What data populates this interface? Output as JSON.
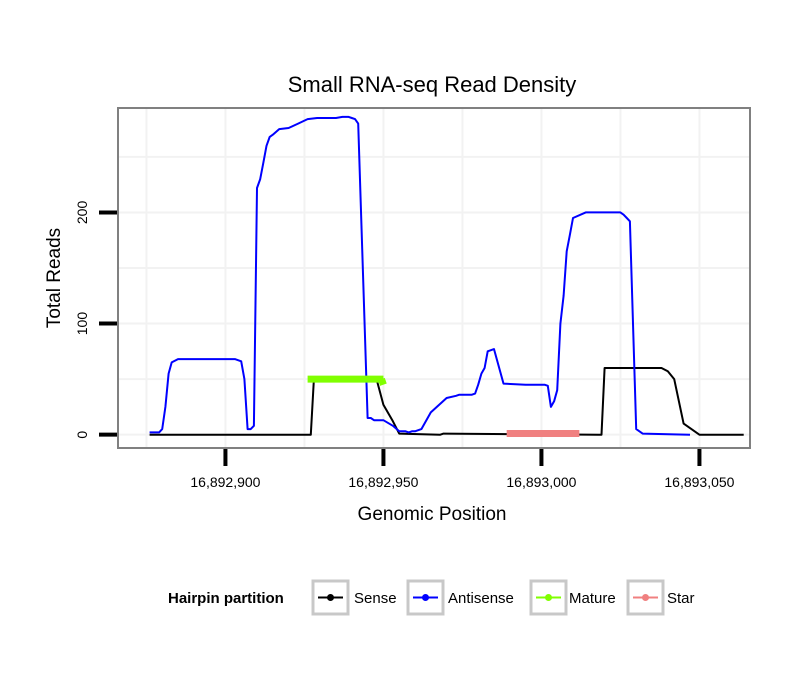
{
  "chart_data": {
    "type": "line",
    "title": "Small RNA-seq Read Density",
    "xlabel": "Genomic Position",
    "ylabel": "Total Reads",
    "xlim": [
      16892866,
      16893066
    ],
    "ylim": [
      -12,
      294
    ],
    "x_ticks": [
      {
        "value": 16892900,
        "label": "16,892,900"
      },
      {
        "value": 16892950,
        "label": "16,892,950"
      },
      {
        "value": 16893000,
        "label": "16,893,000"
      },
      {
        "value": 16893050,
        "label": "16,893,050"
      }
    ],
    "y_ticks": [
      {
        "value": 0,
        "label": "0"
      },
      {
        "value": 100,
        "label": "100"
      },
      {
        "value": 200,
        "label": "200"
      }
    ],
    "grid": true,
    "legend_title": "Hairpin partition",
    "legend_position": "bottom",
    "series": [
      {
        "name": "Sense",
        "color": "#000000",
        "width": 2,
        "x": [
          16892876,
          16892927,
          16892928,
          16892946,
          16892948,
          16892950,
          16892953,
          16892955,
          16892968,
          16892969,
          16893018,
          16893019,
          16893020,
          16893038,
          16893040,
          16893042,
          16893045,
          16893050,
          16893064
        ],
        "y": [
          0,
          0,
          50,
          50,
          48,
          27,
          12,
          1,
          0,
          1,
          0,
          0,
          60,
          60,
          57,
          50,
          10,
          0,
          0
        ]
      },
      {
        "name": "Antisense",
        "color": "#0000ff",
        "width": 2,
        "x": [
          16892876,
          16892879,
          16892880,
          16892881,
          16892882,
          16892883,
          16892885,
          16892892,
          16892903,
          16892905,
          16892906,
          16892907,
          16892908,
          16892909,
          16892910,
          16892911,
          16892912,
          16892913,
          16892914,
          16892915,
          16892917,
          16892920,
          16892923,
          16892926,
          16892929,
          16892935,
          16892937,
          16892939,
          16892940,
          16892941,
          16892942,
          16892945,
          16892946,
          16892947,
          16892950,
          16892953,
          16892955,
          16892957,
          16892958,
          16892959,
          16892960,
          16892962,
          16892965,
          16892970,
          16892973,
          16892974,
          16892975,
          16892976,
          16892977,
          16892978,
          16892979,
          16892980,
          16892981,
          16892982,
          16892983,
          16892985,
          16892988,
          16892995,
          16893000,
          16893001,
          16893002,
          16893003,
          16893004,
          16893005,
          16893006,
          16893007,
          16893008,
          16893009,
          16893010,
          16893014,
          16893020,
          16893024,
          16893025,
          16893026,
          16893027,
          16893028,
          16893030,
          16893032,
          16893047
        ],
        "y": [
          2,
          2,
          5,
          25,
          55,
          65,
          68,
          68,
          68,
          66,
          50,
          5,
          5,
          8,
          222,
          230,
          245,
          260,
          268,
          270,
          275,
          276,
          280,
          284,
          285,
          285,
          286,
          286,
          285,
          284,
          280,
          15,
          15,
          13,
          13,
          8,
          3,
          3,
          2,
          3,
          3,
          5,
          20,
          33,
          35,
          36,
          36,
          36,
          36,
          36,
          37,
          45,
          55,
          60,
          75,
          77,
          46,
          45,
          45,
          45,
          44,
          25,
          30,
          40,
          100,
          125,
          165,
          180,
          195,
          200,
          200,
          200,
          200,
          198,
          195,
          192,
          5,
          1,
          0
        ]
      }
    ],
    "segments": [
      {
        "name": "Mature",
        "color": "#80ff00",
        "x_start": 16892926,
        "x_end": 16892950,
        "y": 50,
        "end_y": 45
      },
      {
        "name": "Star",
        "color": "#f08080",
        "x_start": 16892989,
        "x_end": 16893012,
        "y": 1
      }
    ],
    "legend": [
      {
        "name": "Sense",
        "color": "#000000"
      },
      {
        "name": "Antisense",
        "color": "#0000ff"
      },
      {
        "name": "Mature",
        "color": "#80ff00"
      },
      {
        "name": "Star",
        "color": "#f08080"
      }
    ]
  }
}
